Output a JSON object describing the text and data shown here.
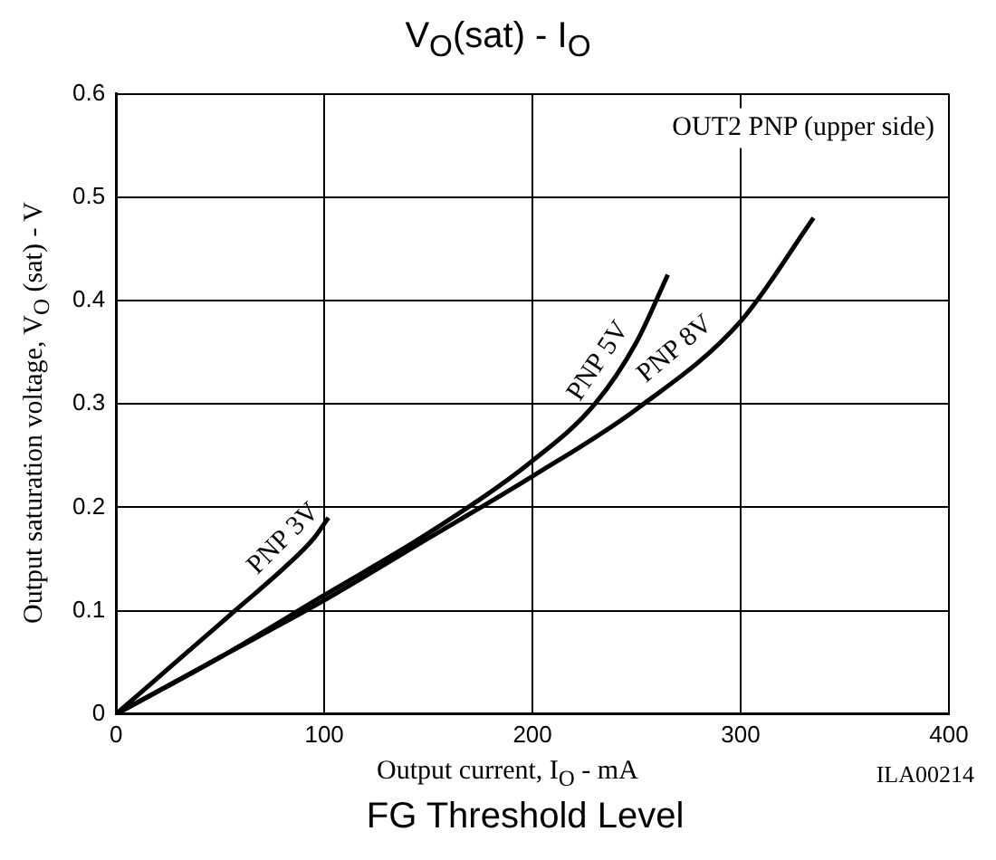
{
  "chart_data": {
    "type": "line",
    "title": "V$_{O}$(sat) - I$_{O}$",
    "xlabel": "Output current, I$_{O}$ - mA",
    "ylabel": "Output saturation voltage, V$_{O}$ (sat)  -  V",
    "annotations": [
      "OUT2 PNP (upper side)",
      "ILA00214",
      "FG Threshold Level"
    ],
    "series": [
      {
        "name": "PNP 3V",
        "color": "#000000",
        "x": [
          0,
          20,
          40,
          60,
          80,
          95,
          102
        ],
        "values": [
          0,
          0.035,
          0.07,
          0.105,
          0.14,
          0.17,
          0.19
        ]
      },
      {
        "name": "PNP 5V",
        "color": "#000000",
        "x": [
          0,
          50,
          100,
          150,
          200,
          230,
          250,
          265
        ],
        "values": [
          0,
          0.055,
          0.115,
          0.175,
          0.245,
          0.3,
          0.36,
          0.425
        ]
      },
      {
        "name": "PNP 8V",
        "color": "#000000",
        "x": [
          0,
          50,
          100,
          150,
          200,
          250,
          300,
          335
        ],
        "values": [
          0,
          0.055,
          0.11,
          0.17,
          0.23,
          0.295,
          0.38,
          0.48
        ]
      }
    ],
    "xlim": [
      0,
      400
    ],
    "xticks": [
      0,
      100,
      200,
      300,
      400
    ],
    "ylim": [
      0,
      0.6
    ],
    "yticks": [
      0,
      0.1,
      0.2,
      0.3,
      0.4,
      0.5,
      0.6
    ],
    "grid": true,
    "legend": false,
    "marker": "none",
    "line_style": "solid"
  }
}
